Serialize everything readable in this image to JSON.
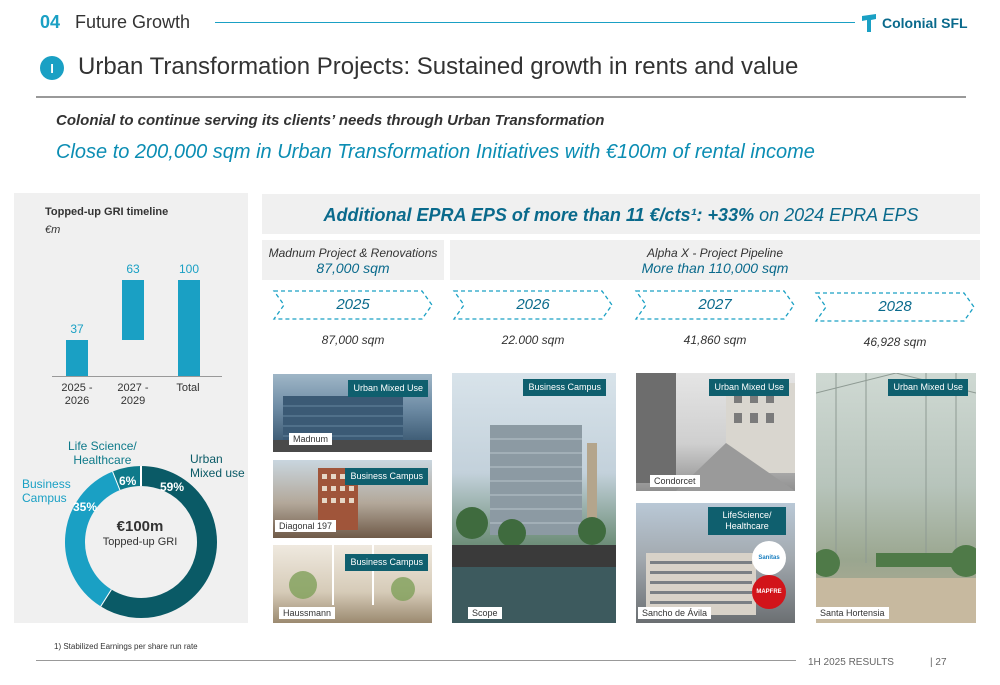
{
  "header": {
    "section_number": "04",
    "section_title": "Future Growth",
    "brand": "Colonial SFL",
    "badge": "I",
    "title": "Urban Transformation Projects: Sustained growth in rents and value"
  },
  "subtitle1": "Colonial to continue serving its clients’ needs through Urban Transformation",
  "subtitle2": "Close to 200,000 sqm in Urban Transformation Initiatives with €100m of rental income",
  "gri_chart": {
    "title": "Topped-up GRI timeline",
    "unit": "€m",
    "categories": [
      "2025 -\n2026",
      "2027 -\n2029",
      "Total"
    ],
    "value_labels": [
      "37",
      "63",
      "100"
    ]
  },
  "donut": {
    "center_value": "€100m",
    "center_label": "Topped-up GRI",
    "segments": [
      {
        "name": "Urban Mixed use",
        "pct": "59%",
        "value": 59,
        "color": "#0a5a66"
      },
      {
        "name": "Business Campus",
        "pct": "35%",
        "value": 35,
        "color": "#1aa0c4"
      },
      {
        "name": "Life Science/ Healthcare",
        "pct": "6%",
        "value": 6,
        "color": "#0e7a8a"
      }
    ]
  },
  "chart_data": [
    {
      "type": "bar",
      "title": "Topped-up GRI timeline",
      "ylabel": "€m",
      "categories": [
        "2025 - 2026",
        "2027 - 2029",
        "Total"
      ],
      "bars": [
        {
          "category": "2025 - 2026",
          "start": 0,
          "end": 37,
          "label": "37"
        },
        {
          "category": "2027 - 2029",
          "start": 37,
          "end": 100,
          "label": "63"
        },
        {
          "category": "Total",
          "start": 0,
          "end": 100,
          "label": "100"
        }
      ],
      "ylim": [
        0,
        100
      ],
      "grid": false
    },
    {
      "type": "pie",
      "labels": [
        "Urban Mixed use",
        "Business Campus",
        "Life Science/ Healthcare"
      ],
      "values": [
        59,
        35,
        6
      ]
    }
  ],
  "eps": {
    "bold": "Additional EPRA EPS of more than 11 €/cts¹: +33%",
    "rest": " on 2024 EPRA EPS"
  },
  "phases": [
    {
      "line1": "Madnum Project & Renovations",
      "line2": "87,000 sqm"
    },
    {
      "line1": "Alpha X - Project Pipeline",
      "line2": "More than 110,000 sqm"
    }
  ],
  "years": [
    {
      "year": "2025",
      "sqm": "87,000 sqm"
    },
    {
      "year": "2026",
      "sqm": "22.000 sqm"
    },
    {
      "year": "2027",
      "sqm": "41,860 sqm"
    },
    {
      "year": "2028",
      "sqm": "46,928 sqm"
    }
  ],
  "photos": {
    "madnum": {
      "tag": "Urban Mixed Use",
      "caption": "Madnum"
    },
    "diagonal": {
      "tag": "Business Campus",
      "caption": "Diagonal 197"
    },
    "haussmann": {
      "tag": "Business Campus",
      "caption": "Haussmann"
    },
    "scope": {
      "tag": "Business Campus",
      "caption": "Scope"
    },
    "condorcet": {
      "tag": "Urban Mixed Use",
      "caption": "Condorcet"
    },
    "sancho": {
      "tag": "LifeScience/ Healthcare",
      "caption": "Sancho de Ávila",
      "logo1": "Sanitas",
      "logo2": "MAPFRE"
    },
    "hortensia": {
      "tag": "Urban Mixed Use",
      "caption": "Santa Hortensia"
    }
  },
  "footnote": "1)    Stabilized Earnings per share run rate",
  "footer": {
    "results": "1H 2025 RESULTS",
    "page": "|  27"
  }
}
